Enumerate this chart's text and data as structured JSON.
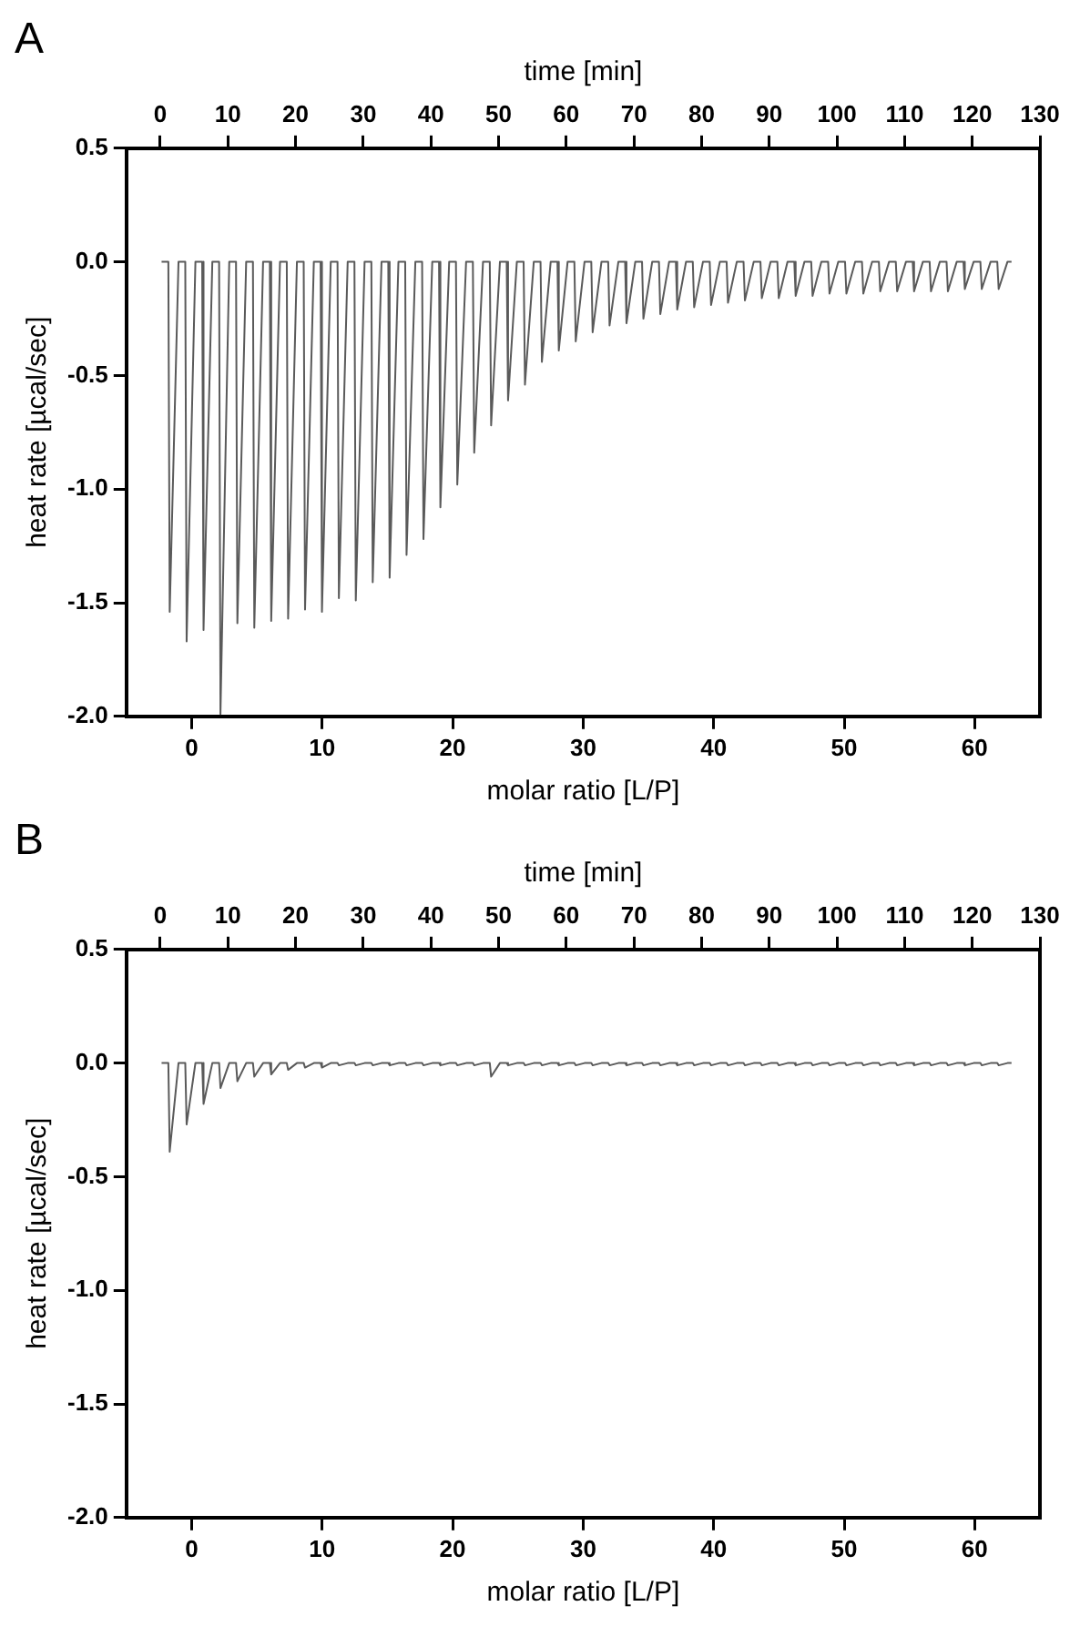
{
  "chart_data": [
    {
      "type": "line",
      "title": "A",
      "xlabel": "time [min]",
      "x2label": "molar ratio [L/P]",
      "ylabel": "heat rate [µcal/sec]",
      "xlim": [
        -5,
        130
      ],
      "xticks": [
        0,
        10,
        20,
        30,
        40,
        50,
        60,
        70,
        80,
        90,
        100,
        110,
        120,
        130
      ],
      "x2lim": [
        -5,
        65
      ],
      "x2ticks": [
        0,
        10,
        20,
        30,
        40,
        50,
        60
      ],
      "ylim": [
        -2,
        0.5
      ],
      "yticks": [
        {
          "value": 0.5,
          "label": "0.5"
        },
        {
          "value": 0,
          "label": "0.0"
        },
        {
          "value": -0.5,
          "label": "-0.5"
        },
        {
          "value": -1,
          "label": "-1.0"
        },
        {
          "value": -1.5,
          "label": "-1.5"
        },
        {
          "value": -2,
          "label": "-2.0"
        }
      ],
      "x": [
        0.2,
        1.2,
        1.4,
        2.7,
        3.7,
        3.9,
        5.2,
        6.2,
        6.4,
        7.7,
        8.7,
        8.9,
        10.2,
        11.2,
        11.4,
        12.7,
        13.7,
        13.9,
        15.2,
        16.2,
        16.4,
        17.7,
        18.7,
        18.9,
        20.2,
        21.2,
        21.4,
        22.7,
        23.7,
        23.9,
        25.2,
        26.2,
        26.4,
        27.7,
        28.7,
        28.9,
        30.2,
        31.2,
        31.4,
        32.7,
        33.7,
        33.9,
        35.2,
        36.2,
        36.4,
        37.7,
        38.7,
        38.9,
        40.2,
        41.2,
        41.4,
        42.7,
        43.7,
        43.9,
        45.2,
        46.2,
        46.4,
        47.7,
        48.7,
        48.9,
        50.2,
        51.2,
        51.4,
        52.7,
        53.7,
        53.9,
        55.2,
        56.2,
        56.4,
        57.7,
        58.7,
        58.9,
        60.2,
        61.2,
        61.4,
        62.7,
        63.7,
        63.9,
        65.2,
        66.2,
        66.4,
        67.7,
        68.7,
        68.9,
        70.2,
        71.2,
        71.4,
        72.7,
        73.7,
        73.9,
        75.2,
        76.2,
        76.4,
        77.7,
        78.7,
        78.9,
        80.2,
        81.2,
        81.4,
        82.7,
        83.7,
        83.9,
        85.2,
        86.2,
        86.4,
        87.7,
        88.7,
        88.9,
        90.2,
        91.2,
        91.4,
        92.7,
        93.7,
        93.9,
        95.2,
        96.2,
        96.4,
        97.7,
        98.7,
        98.9,
        100.2,
        101.2,
        101.4,
        102.7,
        103.7,
        103.9,
        105.2,
        106.2,
        106.4,
        107.7,
        108.7,
        108.9,
        110.2,
        111.2,
        111.4,
        112.7,
        113.7,
        113.9,
        115.2,
        116.2,
        116.4,
        117.7,
        118.7,
        118.9,
        120.2,
        121.2,
        121.4,
        122.7,
        123.7,
        123.9,
        125.2,
        125.8
      ],
      "series": [
        {
          "color": "#5a5a5a",
          "values": [
            0,
            0,
            -1.54,
            0,
            0,
            -1.67,
            0,
            0,
            -1.62,
            0,
            0,
            -1.99,
            0,
            0,
            -1.59,
            0,
            0,
            -1.61,
            0,
            0,
            -1.58,
            0,
            0,
            -1.57,
            0,
            0,
            -1.53,
            0,
            0,
            -1.54,
            0,
            0,
            -1.48,
            0,
            0,
            -1.49,
            0,
            0,
            -1.41,
            0,
            0,
            -1.39,
            0,
            0,
            -1.29,
            0,
            0,
            -1.22,
            0,
            0,
            -1.08,
            0,
            0,
            -0.98,
            0,
            0,
            -0.84,
            0,
            0,
            -0.72,
            0,
            0,
            -0.61,
            0,
            0,
            -0.54,
            0,
            0,
            -0.44,
            0,
            0,
            -0.39,
            0,
            0,
            -0.35,
            0,
            0,
            -0.31,
            0,
            0,
            -0.28,
            0,
            0,
            -0.27,
            0,
            0,
            -0.25,
            0,
            0,
            -0.23,
            0,
            0,
            -0.21,
            0,
            0,
            -0.2,
            0,
            0,
            -0.19,
            0,
            0,
            -0.18,
            0,
            0,
            -0.17,
            0,
            0,
            -0.16,
            0,
            0,
            -0.16,
            0,
            0,
            -0.15,
            0,
            0,
            -0.15,
            0,
            0,
            -0.14,
            0,
            0,
            -0.14,
            0,
            0,
            -0.14,
            0,
            0,
            -0.13,
            0,
            0,
            -0.13,
            0,
            0,
            -0.13,
            0,
            0,
            -0.13,
            0,
            0,
            -0.13,
            0,
            0,
            -0.12,
            0,
            0,
            -0.12,
            0,
            0,
            -0.12,
            0,
            0
          ]
        }
      ]
    },
    {
      "type": "line",
      "title": "B",
      "xlabel": "time [min]",
      "x2label": "molar ratio [L/P]",
      "ylabel": "heat rate [µcal/sec]",
      "xlim": [
        -5,
        130
      ],
      "xticks": [
        0,
        10,
        20,
        30,
        40,
        50,
        60,
        70,
        80,
        90,
        100,
        110,
        120,
        130
      ],
      "x2lim": [
        -5,
        65
      ],
      "x2ticks": [
        0,
        10,
        20,
        30,
        40,
        50,
        60
      ],
      "ylim": [
        -2,
        0.5
      ],
      "yticks": [
        {
          "value": 0.5,
          "label": "0.5"
        },
        {
          "value": 0,
          "label": "0.0"
        },
        {
          "value": -0.5,
          "label": "-0.5"
        },
        {
          "value": -1,
          "label": "-1.0"
        },
        {
          "value": -1.5,
          "label": "-1.5"
        },
        {
          "value": -2,
          "label": "-2.0"
        }
      ],
      "x": [
        0.2,
        1.2,
        1.4,
        2.7,
        3.7,
        3.9,
        5.2,
        6.2,
        6.4,
        7.7,
        8.7,
        8.9,
        10.2,
        11.2,
        11.4,
        12.7,
        13.7,
        13.9,
        15.2,
        16.2,
        16.4,
        17.7,
        18.7,
        18.9,
        20.2,
        21.2,
        21.4,
        22.7,
        23.7,
        23.9,
        25.2,
        26.2,
        26.4,
        27.7,
        28.7,
        28.9,
        30.2,
        31.2,
        31.4,
        32.7,
        33.7,
        33.9,
        35.2,
        36.2,
        36.4,
        37.7,
        38.7,
        38.9,
        40.2,
        41.2,
        41.4,
        42.7,
        43.7,
        43.9,
        45.2,
        46.2,
        46.4,
        47.7,
        48.7,
        48.9,
        50.2,
        51.2,
        51.4,
        52.7,
        53.7,
        53.9,
        55.2,
        56.2,
        56.4,
        57.7,
        58.7,
        58.9,
        60.2,
        61.2,
        61.4,
        62.7,
        63.7,
        63.9,
        65.2,
        66.2,
        66.4,
        67.7,
        68.7,
        68.9,
        70.2,
        71.2,
        71.4,
        72.7,
        73.7,
        73.9,
        75.2,
        76.2,
        76.4,
        77.7,
        78.7,
        78.9,
        80.2,
        81.2,
        81.4,
        82.7,
        83.7,
        83.9,
        85.2,
        86.2,
        86.4,
        87.7,
        88.7,
        88.9,
        90.2,
        91.2,
        91.4,
        92.7,
        93.7,
        93.9,
        95.2,
        96.2,
        96.4,
        97.7,
        98.7,
        98.9,
        100.2,
        101.2,
        101.4,
        102.7,
        103.7,
        103.9,
        105.2,
        106.2,
        106.4,
        107.7,
        108.7,
        108.9,
        110.2,
        111.2,
        111.4,
        112.7,
        113.7,
        113.9,
        115.2,
        116.2,
        116.4,
        117.7,
        118.7,
        118.9,
        120.2,
        121.2,
        121.4,
        122.7,
        123.7,
        123.9,
        125.2,
        125.8
      ],
      "series": [
        {
          "color": "#5a5a5a",
          "values": [
            0,
            0,
            -0.39,
            0,
            0,
            -0.27,
            0,
            0,
            -0.18,
            0,
            0,
            -0.11,
            0,
            0,
            -0.08,
            0,
            0,
            -0.06,
            0,
            0,
            -0.05,
            0,
            0,
            -0.03,
            0,
            0,
            -0.02,
            0,
            0,
            -0.02,
            0,
            0,
            -0.01,
            0,
            0,
            -0.01,
            0,
            0,
            -0.01,
            0,
            0,
            -0.01,
            0,
            0,
            -0.01,
            0,
            0,
            -0.01,
            0,
            0,
            -0.01,
            0,
            0,
            -0.01,
            0,
            0,
            -0.01,
            0,
            0,
            -0.06,
            0,
            0,
            -0.01,
            0,
            0,
            -0.01,
            0,
            0,
            -0.01,
            0,
            0,
            -0.01,
            0,
            0,
            -0.01,
            0,
            0,
            -0.01,
            0,
            0,
            -0.01,
            0,
            0,
            -0.01,
            0,
            0,
            -0.01,
            0,
            0,
            -0.01,
            0,
            0,
            -0.01,
            0,
            0,
            -0.01,
            0,
            0,
            -0.01,
            0,
            0,
            -0.01,
            0,
            0,
            -0.01,
            0,
            0,
            -0.01,
            0,
            0,
            -0.01,
            0,
            0,
            -0.01,
            0,
            0,
            -0.01,
            0,
            0,
            -0.01,
            0,
            0,
            -0.01,
            0,
            0,
            -0.01,
            0,
            0,
            -0.01,
            0,
            0,
            -0.01,
            0,
            0,
            -0.01,
            0,
            0,
            -0.01,
            0,
            0,
            -0.01,
            0,
            0,
            -0.01,
            0,
            0,
            -0.01,
            0,
            0,
            -0.01,
            0,
            0
          ]
        }
      ]
    }
  ]
}
